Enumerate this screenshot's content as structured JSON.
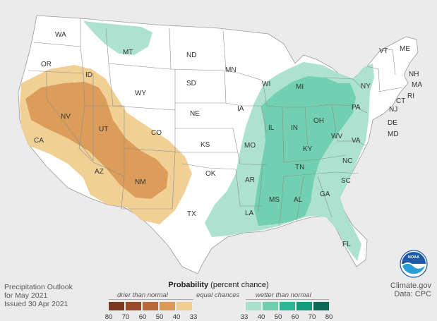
{
  "map": {
    "states": [
      "WA",
      "OR",
      "CA",
      "ID",
      "NV",
      "UT",
      "AZ",
      "MT",
      "WY",
      "CO",
      "NM",
      "ND",
      "SD",
      "NE",
      "KS",
      "OK",
      "TX",
      "MN",
      "IA",
      "MO",
      "AR",
      "LA",
      "WI",
      "IL",
      "MI",
      "IN",
      "OH",
      "KY",
      "TN",
      "MS",
      "AL",
      "GA",
      "FL",
      "SC",
      "NC",
      "VA",
      "WV",
      "PA",
      "NY",
      "VT",
      "NH",
      "ME",
      "MA",
      "RI",
      "CT",
      "NJ",
      "DE",
      "MD"
    ]
  },
  "footer": {
    "line1": "Precipitation Outlook",
    "line2": "for May 2021",
    "line3": "Issued 30 Apr 2021"
  },
  "credits": {
    "site": "Climate.gov",
    "data": "Data: CPC"
  },
  "legend": {
    "title_bold": "Probability",
    "title_rest": " (percent chance)",
    "drier": "drier than normal",
    "equal": "equal chances",
    "wetter": "wetter than normal",
    "ticks": [
      "80",
      "70",
      "60",
      "50",
      "40",
      "33",
      "33",
      "40",
      "50",
      "60",
      "70",
      "80"
    ],
    "colors": {
      "dry80": "#7b3a1f",
      "dry70": "#9a4a2a",
      "dry60": "#b9683a",
      "dry50": "#d99a55",
      "dry40": "#f0cd90",
      "wet40": "#a8e0cc",
      "wet50": "#6fcfb0",
      "wet60": "#2bb596",
      "wet70": "#129a7e",
      "wet80": "#0d6a55"
    }
  },
  "logo": {
    "name": "NOAA"
  }
}
